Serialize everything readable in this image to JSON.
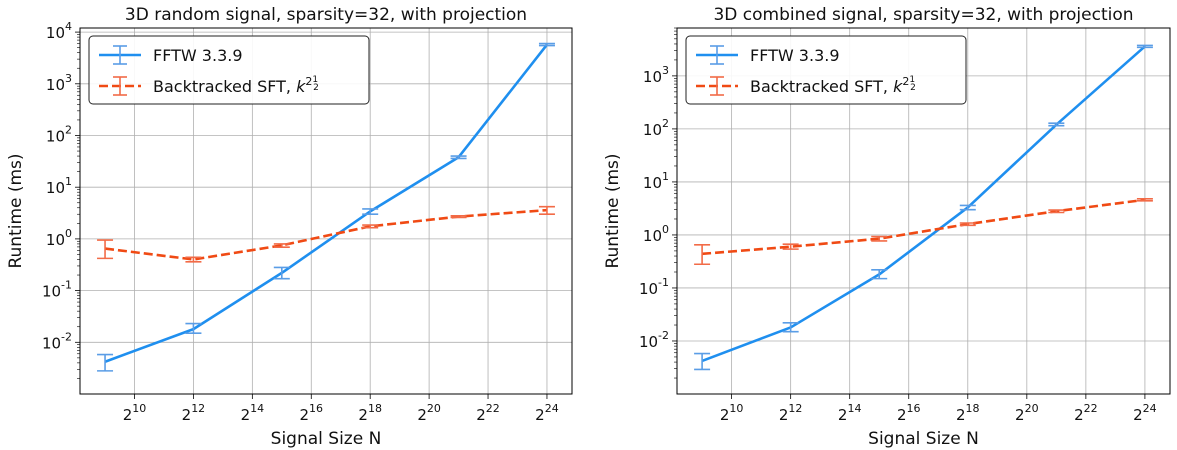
{
  "chart_data": [
    {
      "type": "line",
      "title": "3D random signal, sparsity=32, with projection",
      "xlabel": "Signal Size N",
      "ylabel": "Runtime (ms)",
      "xscale": "log2",
      "yscale": "log10",
      "xlim_exp": [
        8.15,
        24.85
      ],
      "ylim": [
        0.001,
        12000
      ],
      "xticks": {
        "base": "2",
        "exponents": [
          "10",
          "12",
          "14",
          "16",
          "18",
          "20",
          "22",
          "24"
        ]
      },
      "yticks": {
        "base": "10",
        "exponents": [
          "-2",
          "-1",
          "0",
          "1",
          "2",
          "3",
          "4"
        ]
      },
      "grid": true,
      "legend_position": "top-left",
      "series": [
        {
          "name": "FFTW 3.3.9",
          "color": "#1f8fef",
          "style": "solid",
          "points": [
            {
              "x_exp": 9,
              "y": 0.0042,
              "lo": 0.0028,
              "hi": 0.0058
            },
            {
              "x_exp": 12,
              "y": 0.018,
              "lo": 0.015,
              "hi": 0.023
            },
            {
              "x_exp": 15,
              "y": 0.22,
              "lo": 0.17,
              "hi": 0.28
            },
            {
              "x_exp": 18,
              "y": 3.4,
              "lo": 3.0,
              "hi": 3.8
            },
            {
              "x_exp": 21,
              "y": 38,
              "lo": 36,
              "hi": 40
            },
            {
              "x_exp": 24,
              "y": 5700,
              "lo": 5500,
              "hi": 6000
            }
          ]
        },
        {
          "name_prefix": "Backtracked SFT, ",
          "name_math": "k",
          "name_sup": "2",
          "name_frac_num": "1",
          "name_frac_den": "2",
          "color": "#f04a14",
          "style": "dashed",
          "points": [
            {
              "x_exp": 9,
              "y": 0.65,
              "lo": 0.42,
              "hi": 0.95
            },
            {
              "x_exp": 12,
              "y": 0.4,
              "lo": 0.36,
              "hi": 0.44
            },
            {
              "x_exp": 15,
              "y": 0.75,
              "lo": 0.69,
              "hi": 0.8
            },
            {
              "x_exp": 18,
              "y": 1.75,
              "lo": 1.65,
              "hi": 1.85
            },
            {
              "x_exp": 21,
              "y": 2.7,
              "lo": 2.6,
              "hi": 2.8
            },
            {
              "x_exp": 24,
              "y": 3.6,
              "lo": 3.0,
              "hi": 4.2
            }
          ]
        }
      ]
    },
    {
      "type": "line",
      "title": "3D combined signal, sparsity=32, with projection",
      "xlabel": "Signal Size N",
      "ylabel": "Runtime (ms)",
      "xscale": "log2",
      "yscale": "log10",
      "xlim_exp": [
        8.15,
        24.85
      ],
      "ylim": [
        0.001,
        8000
      ],
      "xticks": {
        "base": "2",
        "exponents": [
          "10",
          "12",
          "14",
          "16",
          "18",
          "20",
          "22",
          "24"
        ]
      },
      "yticks": {
        "base": "10",
        "exponents": [
          "-2",
          "-1",
          "0",
          "1",
          "2",
          "3"
        ]
      },
      "grid": true,
      "legend_position": "top-left",
      "series": [
        {
          "name": "FFTW 3.3.9",
          "color": "#1f8fef",
          "style": "solid",
          "points": [
            {
              "x_exp": 9,
              "y": 0.0042,
              "lo": 0.0029,
              "hi": 0.0058
            },
            {
              "x_exp": 12,
              "y": 0.018,
              "lo": 0.015,
              "hi": 0.022
            },
            {
              "x_exp": 15,
              "y": 0.18,
              "lo": 0.15,
              "hi": 0.22
            },
            {
              "x_exp": 18,
              "y": 3.3,
              "lo": 3.0,
              "hi": 3.6
            },
            {
              "x_exp": 21,
              "y": 120,
              "lo": 115,
              "hi": 128
            },
            {
              "x_exp": 24,
              "y": 3600,
              "lo": 3450,
              "hi": 3750
            }
          ]
        },
        {
          "name_prefix": "Backtracked SFT, ",
          "name_math": "k",
          "name_sup": "2",
          "name_frac_num": "1",
          "name_frac_den": "2",
          "color": "#f04a14",
          "style": "dashed",
          "points": [
            {
              "x_exp": 9,
              "y": 0.44,
              "lo": 0.28,
              "hi": 0.65
            },
            {
              "x_exp": 12,
              "y": 0.6,
              "lo": 0.54,
              "hi": 0.67
            },
            {
              "x_exp": 15,
              "y": 0.85,
              "lo": 0.77,
              "hi": 0.93
            },
            {
              "x_exp": 18,
              "y": 1.6,
              "lo": 1.52,
              "hi": 1.68
            },
            {
              "x_exp": 21,
              "y": 2.8,
              "lo": 2.65,
              "hi": 2.95
            },
            {
              "x_exp": 24,
              "y": 4.6,
              "lo": 4.4,
              "hi": 4.8
            }
          ]
        }
      ]
    }
  ]
}
